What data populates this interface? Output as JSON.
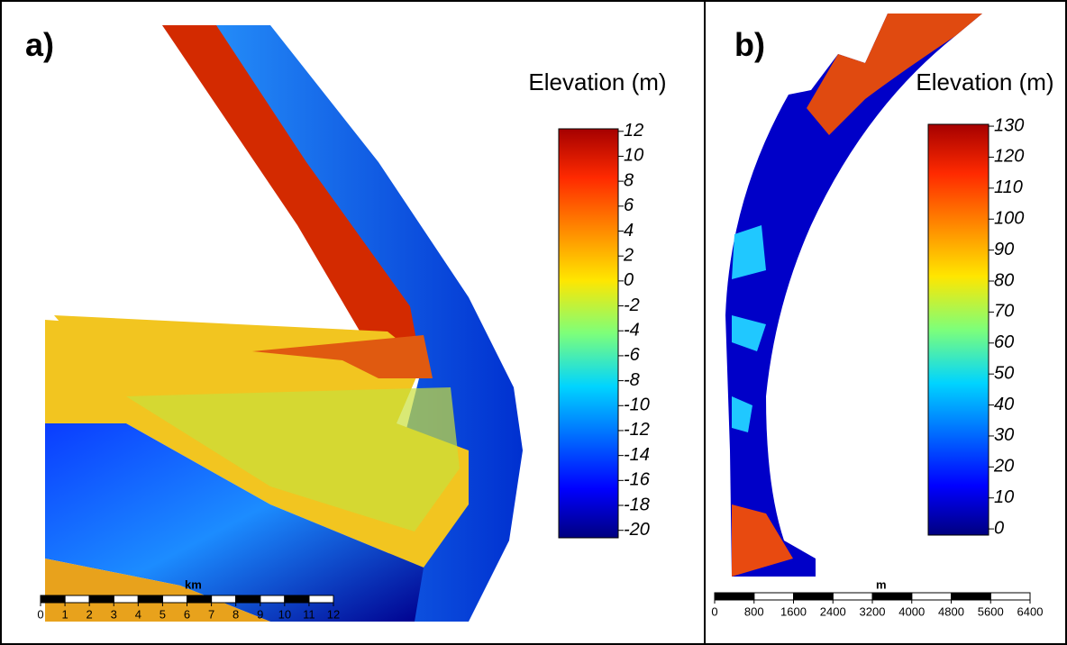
{
  "panels": [
    {
      "label": "a)",
      "legend": {
        "title": "Elevation (m)",
        "lim": [
          -20.6,
          12.2
        ],
        "ticks": [
          12,
          10,
          8,
          6,
          4,
          2,
          0,
          -2,
          -4,
          -6,
          -8,
          -10,
          -12,
          -14,
          -16,
          -18,
          -20
        ]
      },
      "scalebar": {
        "unit": "km",
        "lim": [
          0,
          12
        ],
        "ticks": [
          0,
          1,
          2,
          3,
          4,
          5,
          6,
          7,
          8,
          9,
          10,
          11,
          12
        ]
      }
    },
    {
      "label": "b)",
      "legend": {
        "title": "Elevation (m)",
        "lim": [
          -2,
          130.6
        ],
        "ticks": [
          130,
          120,
          110,
          100,
          90,
          80,
          70,
          60,
          50,
          40,
          30,
          20,
          10,
          0
        ]
      },
      "scalebar": {
        "unit": "m",
        "lim": [
          0,
          6400
        ],
        "ticks": [
          0,
          800,
          1600,
          2400,
          3200,
          4000,
          4800,
          5600,
          6400
        ]
      }
    }
  ]
}
